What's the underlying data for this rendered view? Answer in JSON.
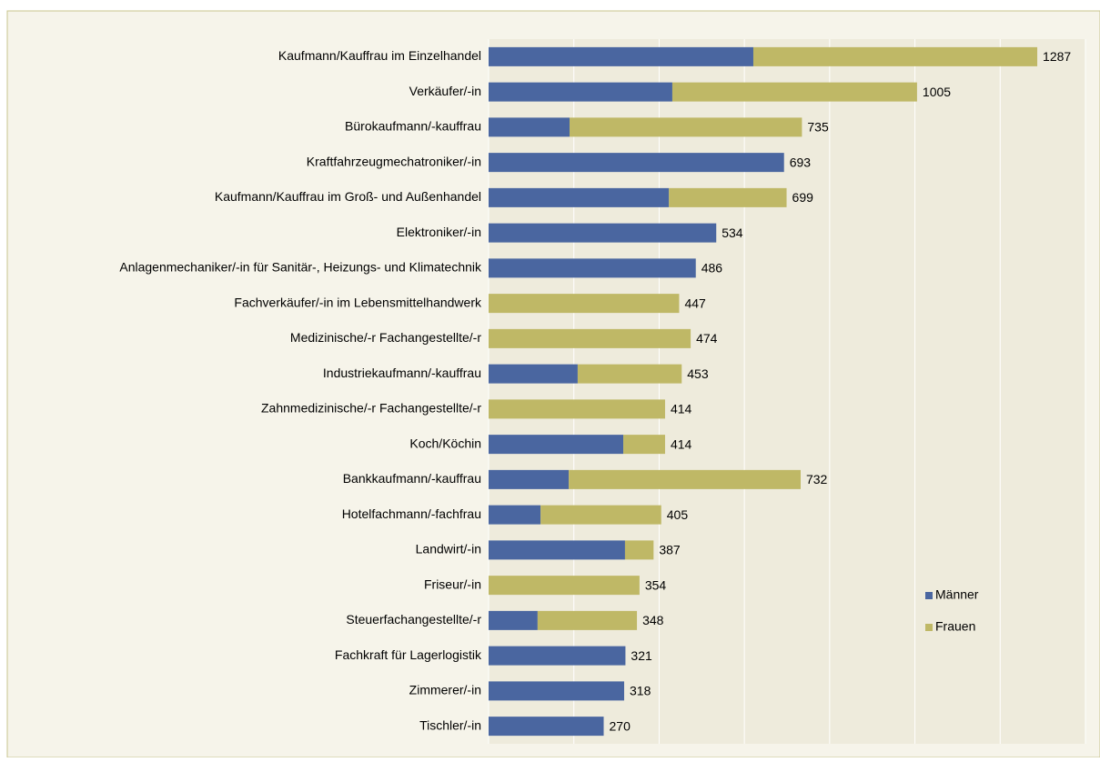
{
  "chart_data": {
    "type": "stacked-barh",
    "categories": [
      "Kaufmann/Kauffrau im Einzelhandel",
      "Verkäufer/-in",
      "Bürokaufmann/-kauffrau",
      "Kraftfahrzeugmechatroniker/-in",
      "Kaufmann/Kauffrau im Groß- und Außenhandel",
      "Elektroniker/-in",
      "Anlagenmechaniker/-in für Sanitär-, Heizungs- und Klimatechnik",
      "Fachverkäufer/-in im Lebensmittelhandwerk",
      "Medizinische/-r Fachangestellte/-r",
      "Industriekaufmann/-kauffrau",
      "Zahnmedizinische/-r Fachangestellte/-r",
      "Koch/Köchin",
      "Bankkaufmann/-kauffrau",
      "Hotelfachmann/-fachfrau",
      "Landwirt/-in",
      "Friseur/-in",
      "Steuerfachangestellte/-r",
      "Fachkraft für Lagerlogistik",
      "Zimmerer/-in",
      "Tischler/-in"
    ],
    "series": [
      {
        "name": "Männer",
        "color": "#4a66a0",
        "values": [
          621,
          431,
          190,
          693,
          423,
          534,
          486,
          0,
          0,
          209,
          0,
          316,
          188,
          122,
          320,
          0,
          115,
          321,
          318,
          270
        ]
      },
      {
        "name": "Frauen",
        "color": "#bfb866",
        "values": [
          666,
          574,
          545,
          0,
          276,
          0,
          0,
          447,
          474,
          244,
          414,
          98,
          544,
          283,
          67,
          354,
          233,
          0,
          0,
          0
        ]
      }
    ],
    "totals": [
      1287,
      1005,
      735,
      693,
      699,
      534,
      486,
      447,
      474,
      453,
      414,
      414,
      732,
      405,
      387,
      354,
      348,
      321,
      318,
      270
    ],
    "xlim": [
      0,
      1400
    ],
    "xticks": [
      0,
      200,
      400,
      600,
      800,
      1000,
      1200,
      1400
    ],
    "grid": true,
    "legend": "right"
  }
}
